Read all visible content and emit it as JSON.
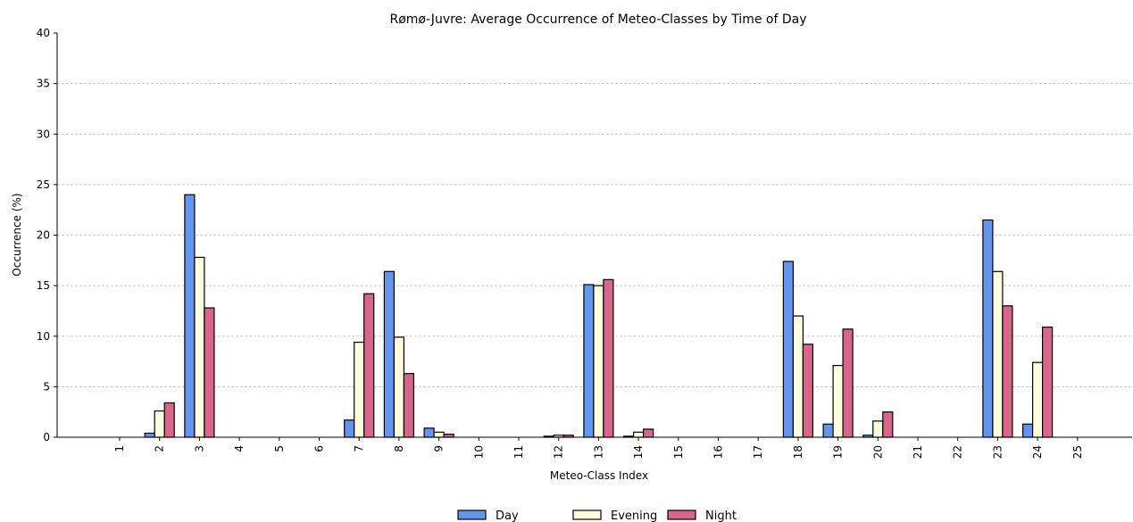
{
  "chart_data": {
    "type": "bar",
    "title": "Rømø-Juvre: Average Occurrence of Meteo-Classes by Time of Day",
    "xlabel": "Meteo-Class Index",
    "ylabel": "Occurrence (%)",
    "ylim": [
      0,
      40
    ],
    "yticks": [
      0,
      5,
      10,
      15,
      20,
      25,
      30,
      35,
      40
    ],
    "grid": "horizontal dashed",
    "legend_position": "bottom-center",
    "categories": [
      "1",
      "2",
      "3",
      "4",
      "5",
      "6",
      "7",
      "8",
      "9",
      "10",
      "11",
      "12",
      "13",
      "14",
      "15",
      "16",
      "17",
      "18",
      "19",
      "20",
      "21",
      "22",
      "23",
      "24",
      "25"
    ],
    "series": [
      {
        "name": "Day",
        "color": "#6495ED",
        "values": [
          0,
          0.4,
          24.0,
          0,
          0,
          0,
          1.7,
          16.4,
          0.9,
          0,
          0,
          0.1,
          15.1,
          0.1,
          0,
          0,
          0,
          17.4,
          1.3,
          0.2,
          0,
          0,
          21.5,
          1.3,
          0
        ]
      },
      {
        "name": "Evening",
        "color": "#FFFFE0",
        "values": [
          0,
          2.6,
          17.8,
          0,
          0,
          0,
          9.4,
          9.9,
          0.5,
          0,
          0,
          0.2,
          15.0,
          0.5,
          0,
          0,
          0,
          12.0,
          7.1,
          1.6,
          0,
          0,
          16.4,
          7.4,
          0
        ]
      },
      {
        "name": "Night",
        "color": "#D7668A",
        "values": [
          0,
          3.4,
          12.8,
          0,
          0,
          0,
          14.2,
          6.3,
          0.3,
          0,
          0,
          0.2,
          15.6,
          0.8,
          0,
          0,
          0,
          9.2,
          10.7,
          2.5,
          0,
          0,
          13.0,
          10.9,
          0
        ]
      }
    ]
  }
}
